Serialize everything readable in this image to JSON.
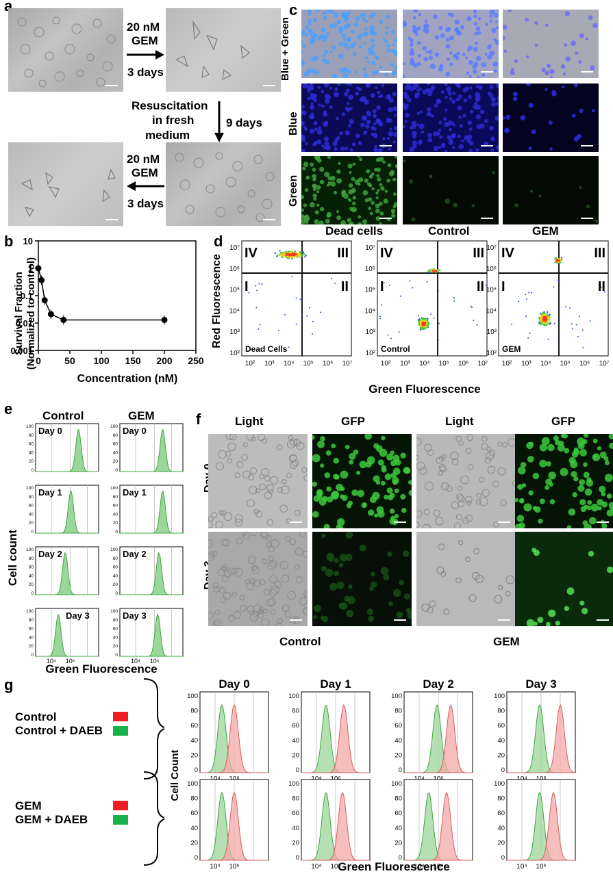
{
  "panel_letters": {
    "a": "a",
    "b": "b",
    "c": "c",
    "d": "d",
    "e": "e",
    "f": "f",
    "g": "g"
  },
  "panel_a": {
    "arrow1_line1": "20 nM",
    "arrow1_line2": "GEM",
    "arrow1_line3": "3 days",
    "resus_line1": "Resuscitation",
    "resus_line2": "in fresh",
    "resus_line3": "medium",
    "resus_days": "9 days",
    "arrow2_line1": "20 nM",
    "arrow2_line2": "GEM",
    "arrow2_line3": "3 days"
  },
  "panel_c": {
    "rows": [
      "Blue + Green",
      "Blue",
      "Green"
    ],
    "columns": [
      "Dead cells",
      "Control",
      "GEM"
    ]
  },
  "panel_d": {
    "xlabel": "Green Fluorescence",
    "ylabel": "Red Fluorescence",
    "quadrants": [
      "IV",
      "III",
      "I",
      "II"
    ],
    "plots": [
      {
        "title": "Dead cells",
        "inner_label": "Dead Cells"
      },
      {
        "title": "Control",
        "inner_label": "Control"
      },
      {
        "title": "GEM",
        "inner_label": "GEM"
      }
    ],
    "xticks": [
      "10²",
      "10³",
      "10⁴",
      "10⁵",
      "10⁶",
      "10⁷"
    ],
    "yticks": [
      "10⁷",
      "10⁶",
      "10⁵",
      "10⁴",
      "10³",
      "10²"
    ]
  },
  "panel_e": {
    "col_titles": [
      "Control",
      "GEM"
    ],
    "days": [
      "Day 0",
      "Day 1",
      "Day 2",
      "Day 3"
    ],
    "ylabel": "Cell count",
    "xlabel": "Green Fluorescence",
    "yticks": [
      "100",
      "80",
      "60",
      "40",
      "20",
      "0"
    ],
    "xticks": [
      "10⁴",
      "10⁶"
    ]
  },
  "panel_f": {
    "col_titles": [
      "Light",
      "GFP",
      "Light",
      "GFP"
    ],
    "row_titles": [
      "Day 0",
      "Day 3"
    ],
    "group_titles": [
      "Control",
      "GEM"
    ]
  },
  "panel_g": {
    "legend_top_1": "Control",
    "legend_top_2": "Control + DAEB",
    "legend_bottom_1": "GEM",
    "legend_bottom_2": "GEM + DAEB",
    "day_titles": [
      "Day 0",
      "Day 1",
      "Day 2",
      "Day 3"
    ],
    "ylabel": "Cell Count",
    "xlabel": "Green Fluorescence",
    "yticks": [
      "100",
      "80",
      "60",
      "40",
      "20",
      "0"
    ],
    "xticks": [
      "10⁴",
      "10⁶"
    ],
    "colors": {
      "red": "#ee1c25",
      "green": "#15b34a",
      "red_fill": "#f4a8a8",
      "green_fill": "#9bd69b"
    }
  },
  "chart_data": [
    {
      "type": "line",
      "panel": "b",
      "xlabel": "Concentration (nM)",
      "ylabel": "Survival  Fraction (Normalized to control)",
      "xlim": [
        0,
        250
      ],
      "ylim": [
        0.001,
        10
      ],
      "yscale": "log",
      "x": [
        0,
        5,
        10,
        20,
        40,
        200
      ],
      "values": [
        1.0,
        0.37,
        0.068,
        0.021,
        0.013,
        0.013
      ],
      "xticks": [
        "0",
        "50",
        "100",
        "150",
        "200",
        "250"
      ],
      "yticks": [
        "10",
        "1",
        "0.1",
        "0.01",
        "0.001"
      ]
    }
  ]
}
